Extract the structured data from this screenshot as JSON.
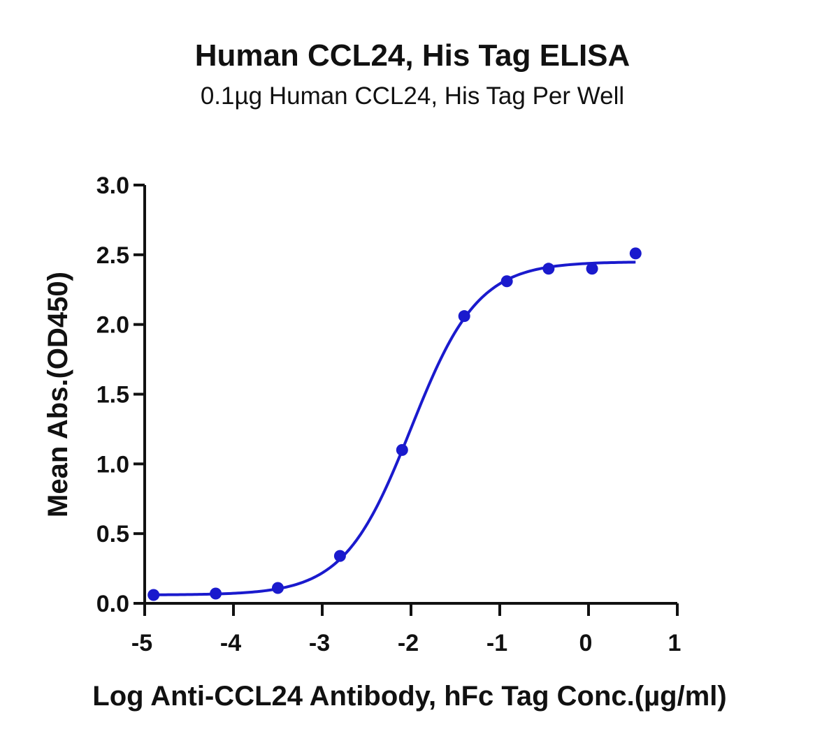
{
  "chart_data": {
    "type": "scatter",
    "title": "Human CCL24, His Tag ELISA",
    "subtitle": "0.1µg Human CCL24, His Tag Per Well",
    "xlabel": "Log Anti-CCL24 Antibody, hFc Tag Conc.(µg/ml)",
    "ylabel": "Mean Abs.(OD450)",
    "xlim": [
      -5,
      1
    ],
    "ylim": [
      0,
      3
    ],
    "x_ticks": [
      "-5",
      "-4",
      "-3",
      "-2",
      "-1",
      "0",
      "1"
    ],
    "y_ticks": [
      "0.0",
      "0.5",
      "1.0",
      "1.5",
      "2.0",
      "2.5",
      "3.0"
    ],
    "grid": false,
    "series": [
      {
        "x": [
          -4.9,
          -4.2,
          -3.5,
          -2.8,
          -2.1,
          -1.4,
          -0.92,
          -0.45,
          0.04,
          0.53
        ],
        "y": [
          0.06,
          0.07,
          0.11,
          0.34,
          1.1,
          2.06,
          2.31,
          2.4,
          2.4,
          2.51
        ],
        "fit": "sigmoidal-4pl",
        "fit_params": {
          "bottom": 0.06,
          "top": 2.45,
          "logEC50": -2.0,
          "hill": 1.15
        },
        "color": "#1a1acd"
      }
    ]
  }
}
